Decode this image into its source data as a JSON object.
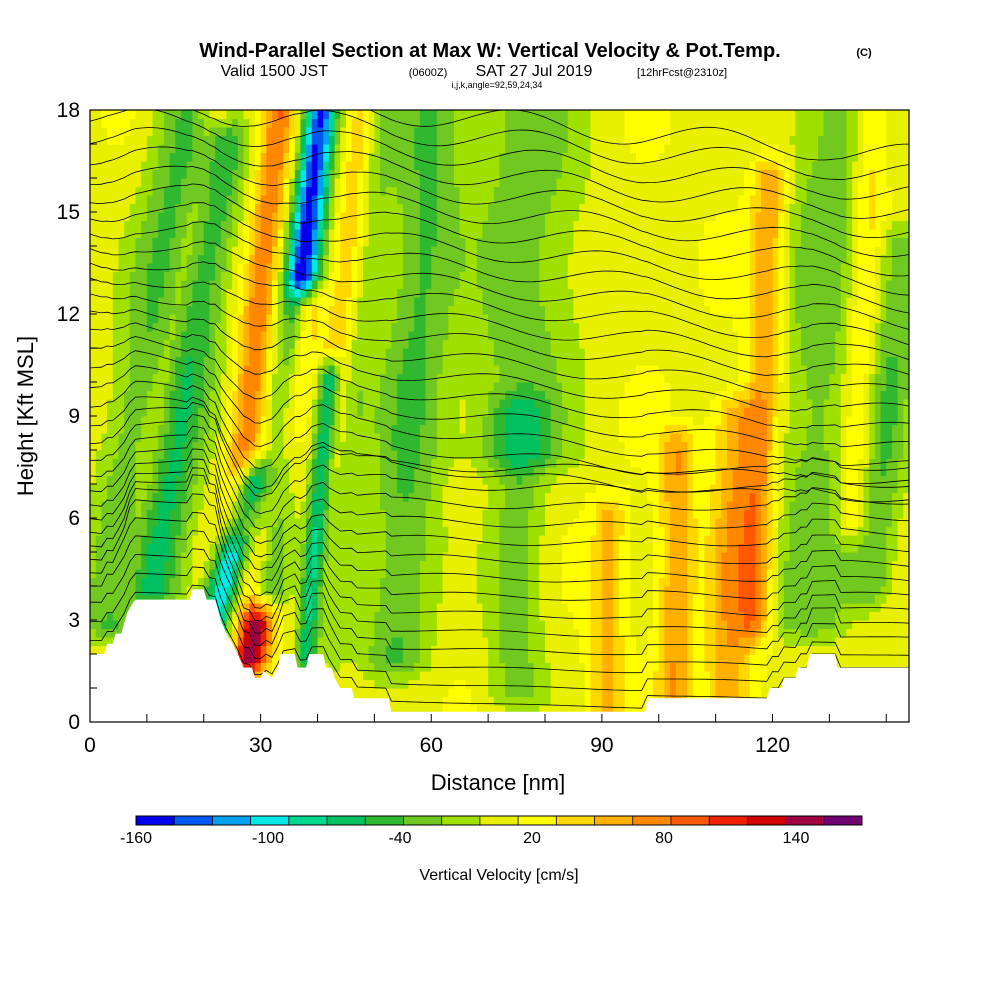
{
  "title": "Wind-Parallel Section at Max W: Vertical Velocity & Pot.Temp.",
  "title_mark": "(C)",
  "subtitle_valid": "Valid 1500 JST",
  "subtitle_utc": "(0600Z)",
  "subtitle_date": "SAT 27 Jul 2019",
  "subtitle_fcst": "[12hrFcst@2310z]",
  "subtitle_indices": "i,j,k,angle=92,59,24,34",
  "chart_data": {
    "type": "heatmap",
    "xlabel": "Distance [nm]",
    "ylabel": "Height [Kft MSL]",
    "xlim": [
      0,
      144
    ],
    "ylim": [
      0,
      18
    ],
    "x_ticks": [
      "0",
      "30",
      "60",
      "90",
      "120"
    ],
    "y_ticks": [
      "0",
      "3",
      "6",
      "9",
      "12",
      "15",
      "18"
    ],
    "x_tick_values": [
      0,
      30,
      60,
      90,
      120
    ],
    "y_tick_values": [
      0,
      3,
      6,
      9,
      12,
      15,
      18
    ],
    "colorbar": {
      "label": "Vertical Velocity [cm/s]",
      "tick_labels": [
        "-160",
        "-100",
        "-40",
        "20",
        "80",
        "140"
      ],
      "tick_values": [
        -160,
        -100,
        -40,
        20,
        80,
        140
      ],
      "range": [
        -160,
        170
      ],
      "colors": [
        "#0000ee",
        "#0058ee",
        "#00a0f0",
        "#00e8e8",
        "#00d890",
        "#00c060",
        "#30b830",
        "#70c820",
        "#a0e000",
        "#e8f000",
        "#ffff00",
        "#ffd800",
        "#ffb000",
        "#ff8800",
        "#ff5800",
        "#ee2000",
        "#d00000",
        "#a00040",
        "#700070"
      ]
    },
    "terrain_kft": [
      [
        0,
        2.0
      ],
      [
        2.5,
        2.0
      ],
      [
        3,
        2.3
      ],
      [
        4,
        2.3
      ],
      [
        4.5,
        2.6
      ],
      [
        5.5,
        2.6
      ],
      [
        6,
        2.9
      ],
      [
        6.5,
        3.2
      ],
      [
        7.5,
        3.5
      ],
      [
        8,
        3.6
      ],
      [
        17.5,
        3.6
      ],
      [
        18,
        3.9
      ],
      [
        20,
        3.9
      ],
      [
        20.5,
        3.6
      ],
      [
        22,
        3.6
      ],
      [
        22.5,
        3.3
      ],
      [
        23,
        3.0
      ],
      [
        24,
        2.6
      ],
      [
        25,
        2.3
      ],
      [
        26,
        2.0
      ],
      [
        27,
        1.6
      ],
      [
        28.5,
        1.6
      ],
      [
        29,
        1.3
      ],
      [
        30,
        1.3
      ],
      [
        30.5,
        1.5
      ],
      [
        32,
        1.3
      ],
      [
        33,
        1.6
      ],
      [
        33.5,
        2.0
      ],
      [
        36,
        2.0
      ],
      [
        36.5,
        1.6
      ],
      [
        38,
        1.6
      ],
      [
        38.5,
        2.0
      ],
      [
        41,
        2.0
      ],
      [
        41.5,
        1.6
      ],
      [
        42.5,
        1.6
      ],
      [
        43,
        1.3
      ],
      [
        44,
        1.0
      ],
      [
        46,
        1.0
      ],
      [
        46.5,
        0.7
      ],
      [
        52.5,
        0.7
      ],
      [
        53,
        0.3
      ],
      [
        64,
        0.3
      ],
      [
        64.5,
        0.3
      ],
      [
        97.5,
        0.3
      ],
      [
        98,
        0.7
      ],
      [
        119,
        0.7
      ],
      [
        119.5,
        1.0
      ],
      [
        121.5,
        1.0
      ],
      [
        122,
        1.3
      ],
      [
        124,
        1.3
      ],
      [
        124.5,
        1.6
      ],
      [
        126,
        1.6
      ],
      [
        126.5,
        2.0
      ],
      [
        131,
        2.0
      ],
      [
        131.5,
        1.6
      ],
      [
        144,
        1.6
      ]
    ],
    "velocity_features": [
      {
        "x": 9,
        "z": 9,
        "w": -50,
        "lean": 0.9,
        "width": 6,
        "zmin": 3,
        "zmax": 18
      },
      {
        "x": 14,
        "z": 11,
        "w": 40,
        "lean": 1.1,
        "width": 3,
        "zmin": 4,
        "zmax": 18
      },
      {
        "x": 17,
        "z": 10,
        "w": -60,
        "lean": 0.9,
        "width": 5,
        "zmin": 4,
        "zmax": 17
      },
      {
        "x": 25,
        "z": 5,
        "w": -120,
        "lean": 1.6,
        "width": 3,
        "zmin": 2.5,
        "zmax": 7
      },
      {
        "x": 31,
        "z": 5,
        "w": 140,
        "lean": 0.9,
        "width": 3,
        "zmin": 2,
        "zmax": 12
      },
      {
        "x": 29,
        "z": 11,
        "w": 70,
        "lean": 0.6,
        "width": 3,
        "zmin": 6,
        "zmax": 18
      },
      {
        "x": 35,
        "z": 10,
        "w": -160,
        "lean": 0.7,
        "width": 3,
        "zmin": 4,
        "zmax": 18
      },
      {
        "x": 39,
        "z": 4,
        "w": -110,
        "lean": 0.5,
        "width": 2,
        "zmin": 1.5,
        "zmax": 10
      },
      {
        "x": 41,
        "z": 6,
        "w": 70,
        "lean": 0.6,
        "width": 3,
        "zmin": 1.5,
        "zmax": 18
      },
      {
        "x": 45,
        "z": 10,
        "w": -50,
        "lean": 0.6,
        "width": 4,
        "zmin": 2,
        "zmax": 18
      },
      {
        "x": 56,
        "z": 8,
        "w": -50,
        "lean": 0.4,
        "width": 6,
        "zmin": 2,
        "zmax": 18
      },
      {
        "x": 76,
        "z": 12,
        "w": -40,
        "lean": 0.2,
        "width": 10,
        "zmin": 8,
        "zmax": 18
      },
      {
        "x": 75,
        "z": 4,
        "w": -40,
        "lean": 0.1,
        "width": 5,
        "zmin": 1,
        "zmax": 9
      },
      {
        "x": 91,
        "z": 3,
        "w": 45,
        "lean": 0.1,
        "width": 3,
        "zmin": 0.5,
        "zmax": 6
      },
      {
        "x": 103,
        "z": 4,
        "w": 55,
        "lean": 0.1,
        "width": 3,
        "zmin": 1,
        "zmax": 8
      },
      {
        "x": 113,
        "z": 5,
        "w": 55,
        "lean": 0.2,
        "width": 4,
        "zmin": 1,
        "zmax": 9
      },
      {
        "x": 118,
        "z": 8,
        "w": 60,
        "lean": 0.2,
        "width": 3,
        "zmin": 3,
        "zmax": 16
      },
      {
        "x": 128,
        "z": 9,
        "w": -40,
        "lean": 0.3,
        "width": 8,
        "zmin": 3,
        "zmax": 18
      },
      {
        "x": 139,
        "z": 7,
        "w": -45,
        "lean": 0.5,
        "width": 4,
        "zmin": 4,
        "zmax": 14
      },
      {
        "x": 136,
        "z": 12,
        "w": 40,
        "lean": 0.3,
        "width": 3,
        "zmin": 6,
        "zmax": 18
      }
    ]
  }
}
